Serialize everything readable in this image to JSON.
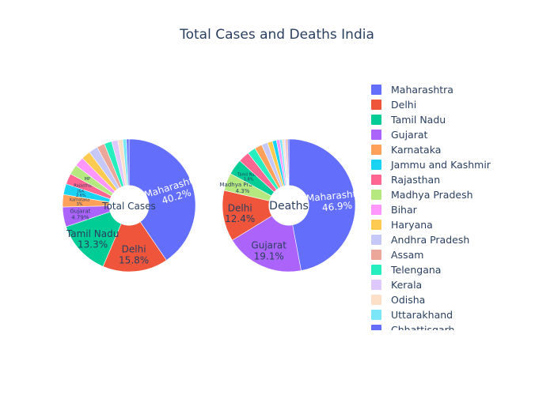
{
  "colors": [
    "#636efa",
    "#EF553B",
    "#00cc96",
    "#ab63fa",
    "#FFA15A",
    "#19d3f3",
    "#FF6692",
    "#B6E880",
    "#FF97FF",
    "#FECB52",
    "#c6c8f8",
    "#eba79a",
    "#26eebf",
    "#dfc8fb",
    "#fde0c8",
    "#7ae6f7"
  ],
  "chart_data": {
    "title": "Total Cases and Deaths India",
    "type": "pie",
    "charts": [
      {
        "center_label": "Total Cases",
        "slices": [
          {
            "label": "Maharashtra",
            "value": 40.2,
            "text": "Maharashtra\n40.2%"
          },
          {
            "label": "Delhi",
            "value": 15.8,
            "text": "Delhi\n15.8%"
          },
          {
            "label": "Tamil Nadu",
            "value": 13.3,
            "text": "Tamil Nadu\n13.3%"
          },
          {
            "label": "Gujarat",
            "value": 4.79,
            "text": "Gujarat\n4.79%"
          },
          {
            "label": "Karnataka",
            "value": 3.0,
            "text": "Karnataka\n3%"
          },
          {
            "label": "Jammu and Kashmir",
            "value": 2.6,
            "text": "J&K\n2.6%"
          },
          {
            "label": "Rajasthan",
            "value": 2.6,
            "text": "Rajasthan"
          },
          {
            "label": "Madhya Pradesh",
            "value": 2.4,
            "text": "MP"
          },
          {
            "label": "Bihar",
            "value": 2.3,
            "text": ""
          },
          {
            "label": "Haryana",
            "value": 2.2,
            "text": ""
          },
          {
            "label": "Andhra Pradesh",
            "value": 2.2,
            "text": ""
          },
          {
            "label": "Assam",
            "value": 1.9,
            "text": ""
          },
          {
            "label": "Telengana",
            "value": 1.8,
            "text": ""
          },
          {
            "label": "Kerala",
            "value": 1.5,
            "text": ""
          },
          {
            "label": "Odisha",
            "value": 1.2,
            "text": ""
          },
          {
            "label": "Uttarakhand",
            "value": 0.9,
            "text": ""
          },
          {
            "label": "Chhattisgarh",
            "value": 0.6,
            "text": ""
          }
        ]
      },
      {
        "center_label": "Deaths",
        "slices": [
          {
            "label": "Maharashtra",
            "value": 46.9,
            "text": "Maharashtra\n46.9%"
          },
          {
            "label": "Gujarat",
            "value": 19.1,
            "text": "Gujarat\n19.1%"
          },
          {
            "label": "Delhi",
            "value": 12.4,
            "text": "Delhi\n12.4%"
          },
          {
            "label": "Madhya Pradesh",
            "value": 4.3,
            "text": "Madhya Pradesh\n4.3%"
          },
          {
            "label": "Tamil Nadu",
            "value": 3.8,
            "text": "Tamil Nadu\n3.8%"
          },
          {
            "label": "Rajasthan",
            "value": 2.7,
            "text": ""
          },
          {
            "label": "Telengana",
            "value": 2.0,
            "text": ""
          },
          {
            "label": "Karnataka",
            "value": 1.8,
            "text": ""
          },
          {
            "label": "Andhra Pradesh",
            "value": 1.5,
            "text": ""
          },
          {
            "label": "Haryana",
            "value": 1.2,
            "text": ""
          },
          {
            "label": "Jammu and Kashmir",
            "value": 1.0,
            "text": ""
          },
          {
            "label": "Bihar",
            "value": 0.8,
            "text": ""
          },
          {
            "label": "Uttarakhand",
            "value": 0.6,
            "text": ""
          },
          {
            "label": "Odisha",
            "value": 0.5,
            "text": ""
          },
          {
            "label": "Kerala",
            "value": 0.4,
            "text": ""
          },
          {
            "label": "Assam",
            "value": 0.4,
            "text": ""
          },
          {
            "label": "Chhattisgarh",
            "value": 0.3,
            "text": ""
          }
        ]
      }
    ],
    "legend": [
      "Maharashtra",
      "Delhi",
      "Tamil Nadu",
      "Gujarat",
      "Karnataka",
      "Jammu and Kashmir",
      "Rajasthan",
      "Madhya Pradesh",
      "Bihar",
      "Haryana",
      "Andhra Pradesh",
      "Assam",
      "Telengana",
      "Kerala",
      "Odisha",
      "Uttarakhand",
      "Chhattisgarh"
    ],
    "legend_position": "right"
  }
}
